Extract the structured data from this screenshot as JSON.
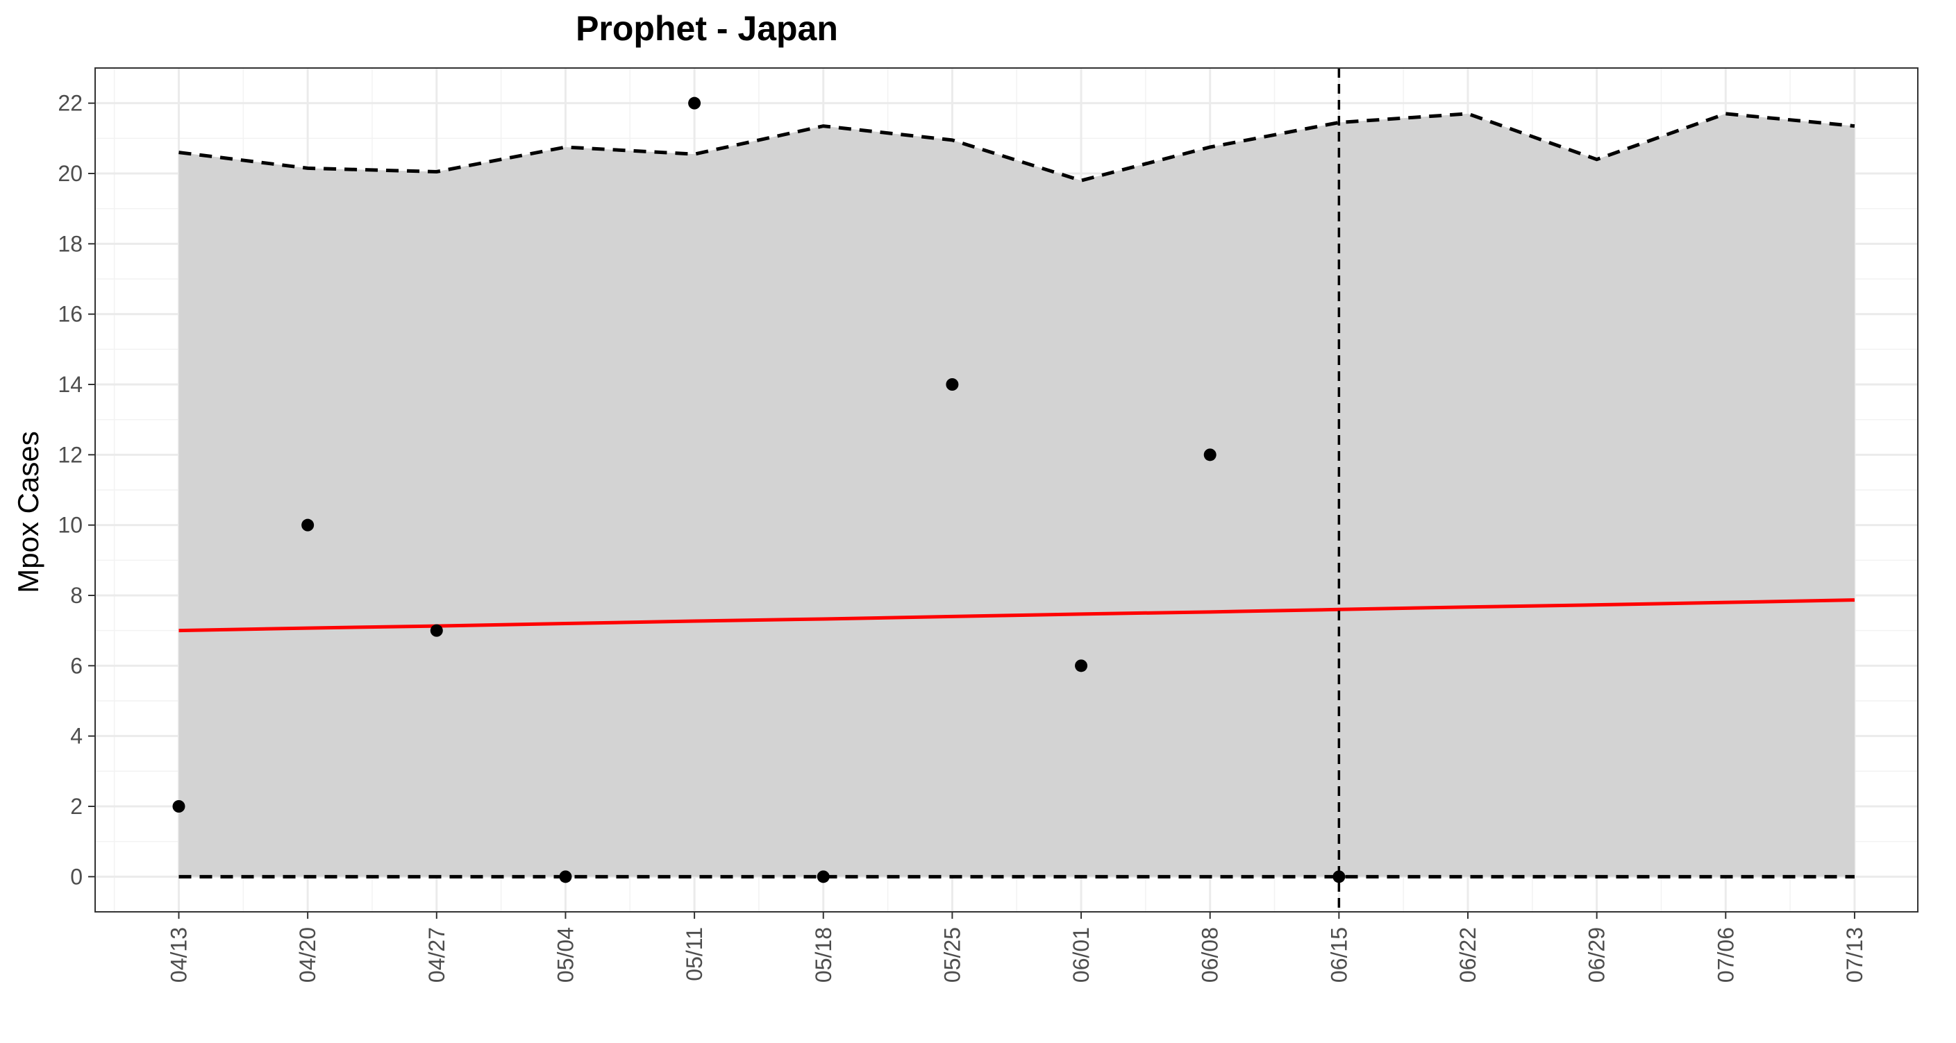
{
  "chart_data": {
    "type": "line",
    "title": "Prophet - Japan",
    "xlabel": "",
    "ylabel": "Mpox Cases",
    "x_tick_labels": [
      "04/13",
      "04/20",
      "04/27",
      "05/04",
      "05/11",
      "05/18",
      "05/25",
      "06/01",
      "06/08",
      "06/15",
      "06/22",
      "06/29",
      "07/06",
      "07/13"
    ],
    "ylim": [
      -1,
      23
    ],
    "y_ticks": [
      0,
      2,
      4,
      6,
      8,
      10,
      12,
      14,
      16,
      18,
      20,
      22
    ],
    "grid": true,
    "series": [
      {
        "kind": "band",
        "upper": [
          20.6,
          20.15,
          20.05,
          20.75,
          20.55,
          21.35,
          20.95,
          19.8,
          20.75,
          21.45,
          21.7,
          20.4,
          21.7,
          21.35
        ],
        "lower": [
          0,
          0,
          0,
          0,
          0,
          0,
          0,
          0,
          0,
          0,
          0,
          0,
          0,
          0
        ],
        "color": "#d3d3d3"
      },
      {
        "kind": "line",
        "values": [
          7.0,
          7.07,
          7.13,
          7.2,
          7.27,
          7.33,
          7.4,
          7.47,
          7.53,
          7.6,
          7.67,
          7.73,
          7.8,
          7.87
        ],
        "color": "#ff0000"
      },
      {
        "kind": "points",
        "values": [
          2,
          10,
          7,
          0,
          22,
          0,
          14,
          6,
          12,
          0
        ],
        "color": "#000000"
      }
    ],
    "vline_at": "06/15"
  }
}
